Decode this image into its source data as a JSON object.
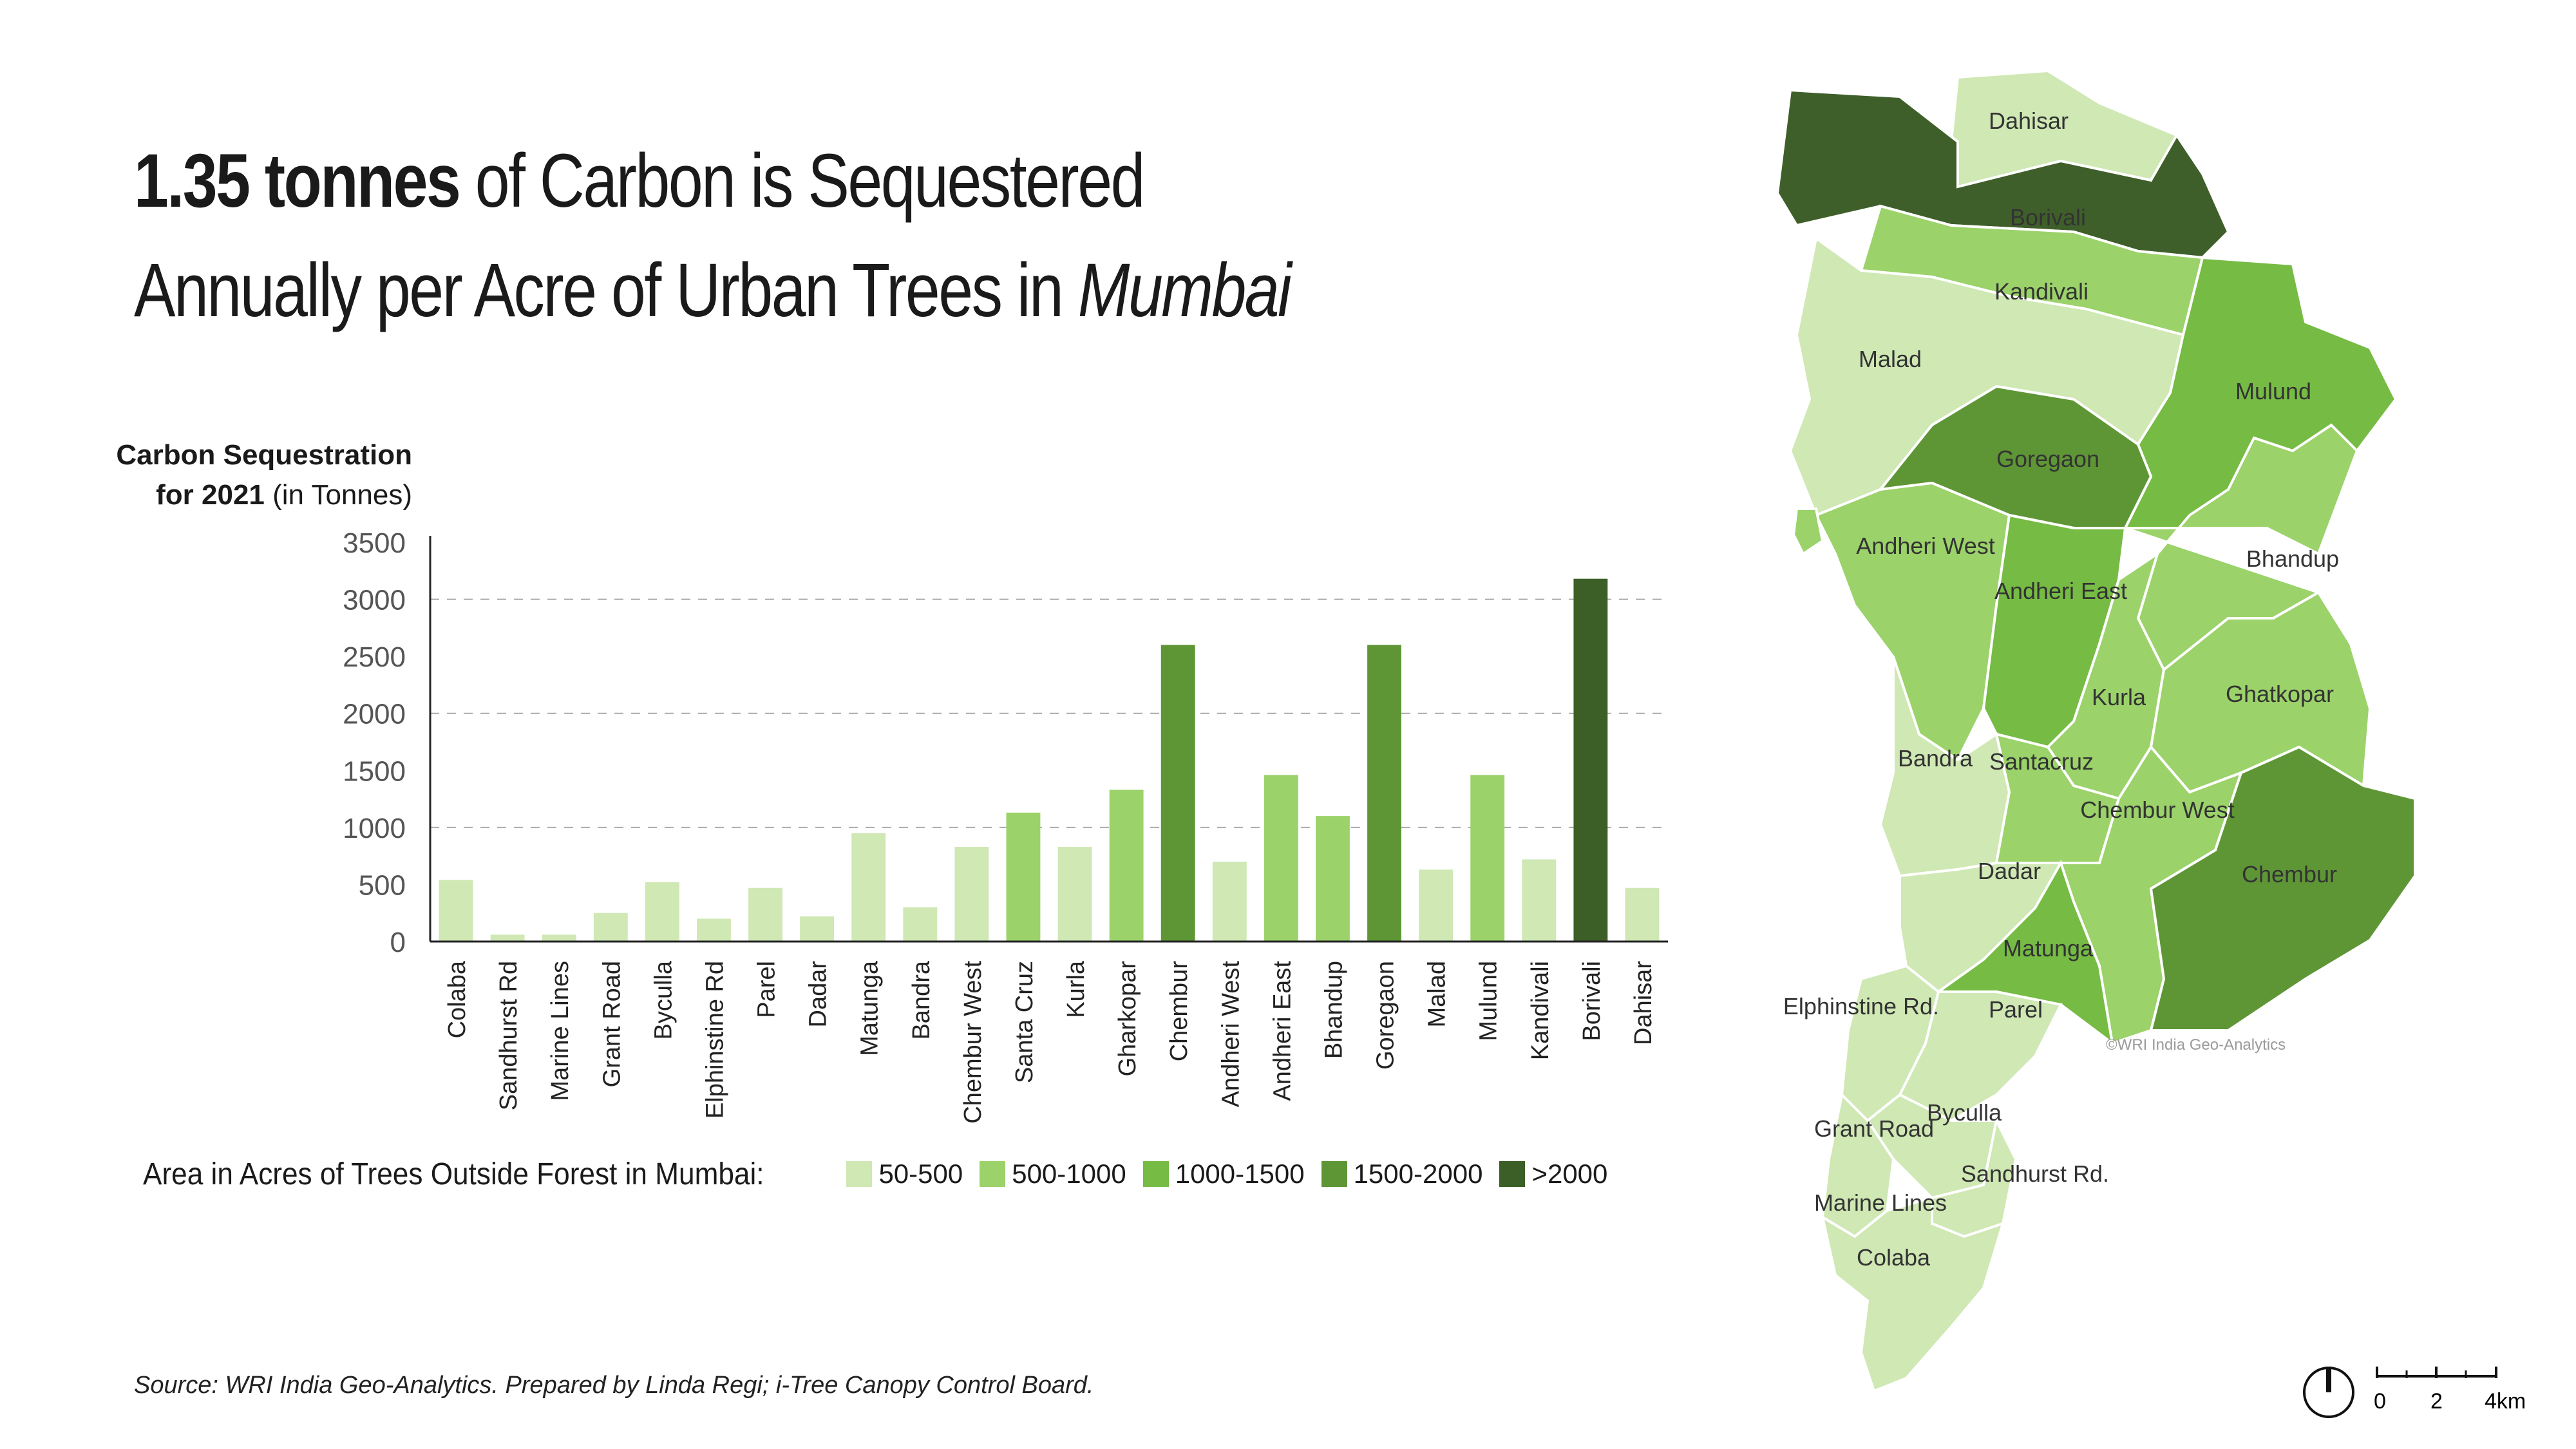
{
  "title": {
    "bold": "1.35 tonnes",
    "line1_rest": " of Carbon is Sequestered",
    "line2": "Annually per Acre of Urban Trees in ",
    "line2_italic": "Mumbai"
  },
  "y_axis_title": {
    "bold": "Carbon Sequestration",
    "bold2": "for 2021",
    "unit": " (in Tonnes)"
  },
  "legend": {
    "title": "Area in Acres of Trees Outside Forest in Mumbai:",
    "items": [
      {
        "label": "50-500",
        "color": "#cfe8b4"
      },
      {
        "label": "500-1000",
        "color": "#9bd26a"
      },
      {
        "label": "1000-1500",
        "color": "#76bb44"
      },
      {
        "label": "1500-2000",
        "color": "#5e9636"
      },
      {
        "label": ">2000",
        "color": "#3b5f27"
      }
    ]
  },
  "chart_data": {
    "type": "bar",
    "categories": [
      "Colaba",
      "Sandhurst Rd",
      "Marine Lines",
      "Grant Road",
      "Byculla",
      "Elphinstine Rd",
      "Parel",
      "Dadar",
      "Matunga",
      "Bandra",
      "Chembur West",
      "Santa Cruz",
      "Kurla",
      "Gharkopar",
      "Chembur",
      "Andheri West",
      "Andheri East",
      "Bhandup",
      "Goregaon",
      "Malad",
      "Mulund",
      "Kandivali",
      "Borivali",
      "Dahisar"
    ],
    "values": [
      540,
      60,
      60,
      250,
      520,
      200,
      470,
      220,
      950,
      300,
      830,
      1130,
      830,
      1330,
      2600,
      700,
      1460,
      1100,
      2600,
      630,
      1460,
      720,
      3180,
      470
    ],
    "area_class": [
      "50-500",
      "50-500",
      "50-500",
      "50-500",
      "50-500",
      "50-500",
      "50-500",
      "50-500",
      "50-500",
      "50-500",
      "50-500",
      "500-1000",
      "50-500",
      "500-1000",
      "1500-2000",
      "50-500",
      "500-1000",
      "500-1000",
      "1500-2000",
      "50-500",
      "500-1000",
      "50-500",
      ">2000",
      "50-500"
    ],
    "yticks": [
      "3500",
      "3000",
      "2500",
      "2000",
      "1500",
      "1000",
      "500",
      "0"
    ],
    "ylim": [
      0,
      3500
    ],
    "gridlines": [
      1000,
      2000,
      3000
    ],
    "grid": "dashed"
  },
  "map": {
    "regions": [
      "Dahisar",
      "Borivali",
      "Kandivali",
      "Malad",
      "Mulund",
      "Goregaon",
      "Andheri West",
      "Andheri East",
      "Bhandup",
      "Kurla",
      "Ghatkopar",
      "Bandra",
      "Santacruz",
      "Chembur West",
      "Chembur",
      "Dadar",
      "Matunga",
      "Elphinstine Rd.",
      "Parel",
      "Byculla",
      "Grant Road",
      "Sandhurst Rd.",
      "Marine Lines",
      "Colaba"
    ],
    "credit": "©WRI India Geo-Analytics",
    "scale_labels": [
      "0",
      "2",
      "4km"
    ]
  },
  "source": "Source: WRI India Geo-Analytics. Prepared by Linda Regi; i-Tree Canopy Control Board."
}
